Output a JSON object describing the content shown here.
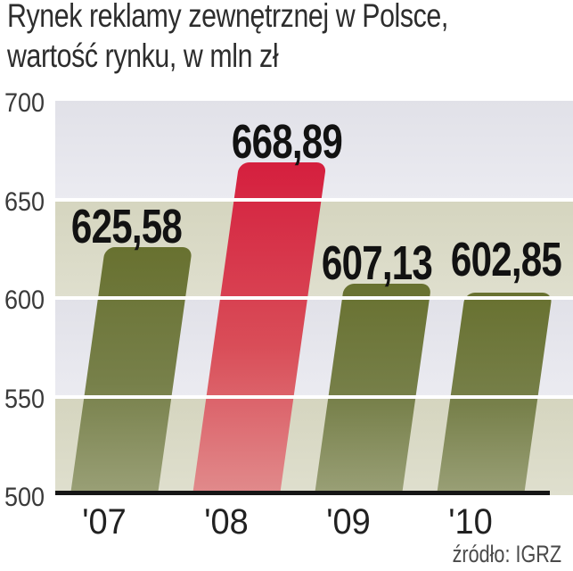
{
  "title": {
    "line1": "Rynek reklamy zewnętrznej w Polsce,",
    "line2": "wartość rynku, w mln zł"
  },
  "source": "źródło: IGRZ",
  "chart_data": {
    "type": "bar",
    "title": "Rynek reklamy zewnętrznej w Polsce, wartość rynku, w mln zł",
    "xlabel": "",
    "ylabel": "wartość rynku, w mln zł",
    "categories": [
      "'07",
      "'08",
      "'09",
      "'10"
    ],
    "values": [
      625.58,
      668.89,
      607.13,
      602.85
    ],
    "value_labels": [
      "625,58",
      "668,89",
      "607,13",
      "602,85"
    ],
    "ylim": [
      500,
      700
    ],
    "yticks": [
      500,
      550,
      600,
      650,
      700
    ],
    "grid": "horizontal-white-over-bars",
    "legend": false,
    "highlight_index": 1,
    "colors": {
      "bar_green_top": "#687130",
      "bar_green_bottom": "#9aa077",
      "bar_red_top": "#d51f3e",
      "bar_red_bottom": "#e18b8c",
      "band_beige": "#d9d9c5",
      "band_gray": "#e5e5eb",
      "gridline": "#ffffff",
      "baseline": "#161616",
      "label_text": "#121212"
    },
    "source": "źródło: IGRZ"
  }
}
